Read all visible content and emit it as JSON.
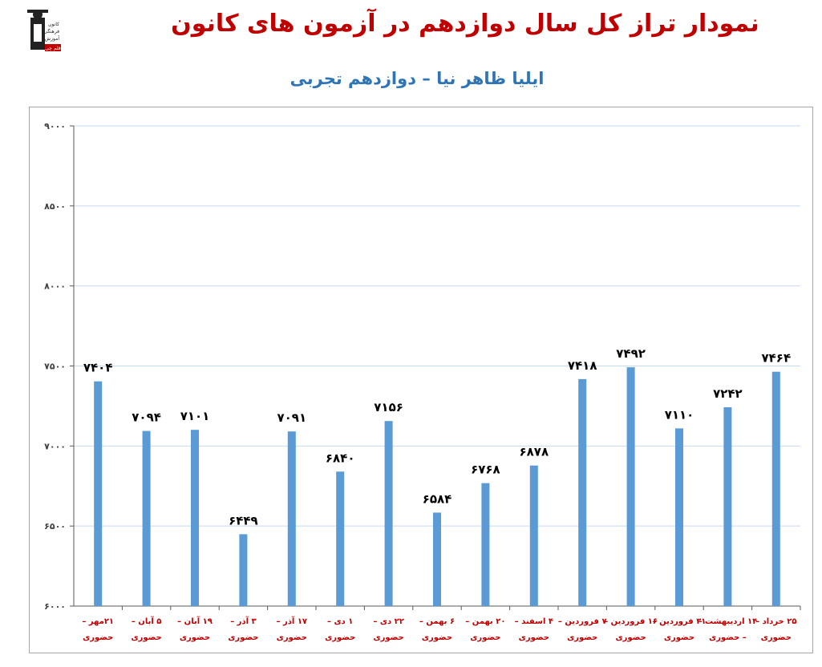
{
  "header": {
    "title": "نمودار تراز کل سال دوازدهم در آزمون های کانون",
    "subtitle": "ایلیا ظاهر نیا – دوازدهم تجربی",
    "logo_text": [
      "کانون",
      "فرهنگی",
      "آموزش",
      "قلم چی"
    ]
  },
  "colors": {
    "bar": "#5b9bd5",
    "grid": "#c6d9f1",
    "title": "#c00000",
    "subtitle": "#2e75b6",
    "xlabel": "#c00000"
  },
  "chart_data": {
    "type": "bar",
    "title": "نمودار تراز کل سال دوازدهم در آزمون های کانون",
    "subtitle": "ایلیا ظاهر نیا – دوازدهم تجربی",
    "ylim": [
      6000,
      9000
    ],
    "yticks": [
      6000,
      6500,
      7000,
      7500,
      8000,
      8500,
      9000
    ],
    "ytick_labels": [
      "۶۰۰۰",
      "۶۵۰۰",
      "۷۰۰۰",
      "۷۵۰۰",
      "۸۰۰۰",
      "۸۵۰۰",
      "۹۰۰۰"
    ],
    "grid": true,
    "categories": [
      [
        "۲۱مهر –",
        "حضوری"
      ],
      [
        "۵ آبان –",
        "حضوری"
      ],
      [
        "۱۹ آبان –",
        "حضوری"
      ],
      [
        "۳ آذر –",
        "حضوری"
      ],
      [
        "۱۷ آذر –",
        "حضوری"
      ],
      [
        "۱ دی –",
        "حضوری"
      ],
      [
        "۲۲ دی –",
        "حضوری"
      ],
      [
        "۶ بهمن –",
        "حضوری"
      ],
      [
        "۲۰ بهمن –",
        "حضوری"
      ],
      [
        "۴ اسفند –",
        "حضوری"
      ],
      [
        "۷ فروردین –",
        "حضوری"
      ],
      [
        "۱۶ فروردین –",
        "حضوری"
      ],
      [
        "۳۱ فروردین –",
        "حضوری"
      ],
      [
        "۱۴ اردیبهشت –",
        "– حضوری"
      ],
      [
        "۲۵ خرداد –",
        "حضوری"
      ]
    ],
    "values": [
      7404,
      7094,
      7101,
      6449,
      7091,
      6840,
      7156,
      6584,
      6768,
      6878,
      7418,
      7492,
      7110,
      7242,
      7464
    ],
    "value_labels": [
      "۷۴۰۴",
      "۷۰۹۴",
      "۷۱۰۱",
      "۶۴۴۹",
      "۷۰۹۱",
      "۶۸۴۰",
      "۷۱۵۶",
      "۶۵۸۴",
      "۶۷۶۸",
      "۶۸۷۸",
      "۷۴۱۸",
      "۷۴۹۲",
      "۷۱۱۰",
      "۷۲۴۲",
      "۷۴۶۴"
    ]
  }
}
